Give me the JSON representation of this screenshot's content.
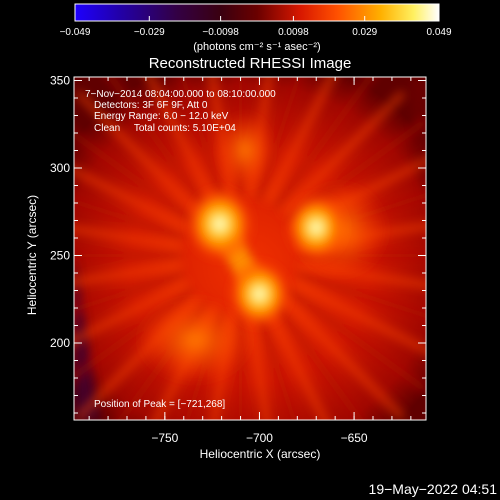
{
  "chart_data": {
    "type": "heatmap",
    "title": "Reconstructed RHESSI Image",
    "xlabel": "Heliocentric X (arcsec)",
    "ylabel": "Heliocentric Y (arcsec)",
    "xlim": [
      -798,
      -612
    ],
    "ylim": [
      156,
      352
    ],
    "x_ticks": [
      -750,
      -700,
      -650
    ],
    "x_tick_labels": [
      "−750",
      "−700",
      "−650"
    ],
    "y_ticks": [
      200,
      250,
      300,
      350
    ],
    "y_tick_labels": [
      "200",
      "250",
      "300",
      "350"
    ],
    "colorbar": {
      "min": -0.049,
      "max": 0.049,
      "ticks": [
        -0.049,
        -0.029,
        -0.0098,
        0.0098,
        0.029,
        0.049
      ],
      "tick_labels": [
        "−0.049",
        "−0.029",
        "−0.0098",
        "0.0098",
        "0.029",
        "0.049"
      ],
      "units": "(photons cm⁻² s⁻¹ asec⁻²)",
      "colormap": "rhessi blue-black-red-yellow-white"
    },
    "info_lines": [
      " 7−Nov−2014 08:04:00.000 to 08:10:00.000",
      "Detectors: 3F 6F 9F, Att 0",
      "Energy Range: 6.0 − 12.0 keV",
      "Clean     Total counts: 5.10E+04"
    ],
    "peak_label": "Position of Peak = [−721,268]",
    "sources": [
      {
        "x": -721,
        "y": 268,
        "intensity": 0.049
      },
      {
        "x": -700,
        "y": 228,
        "intensity": 0.045
      },
      {
        "x": -670,
        "y": 266,
        "intensity": 0.044
      }
    ]
  },
  "footer": {
    "date": "19−May−2022 04:51"
  }
}
